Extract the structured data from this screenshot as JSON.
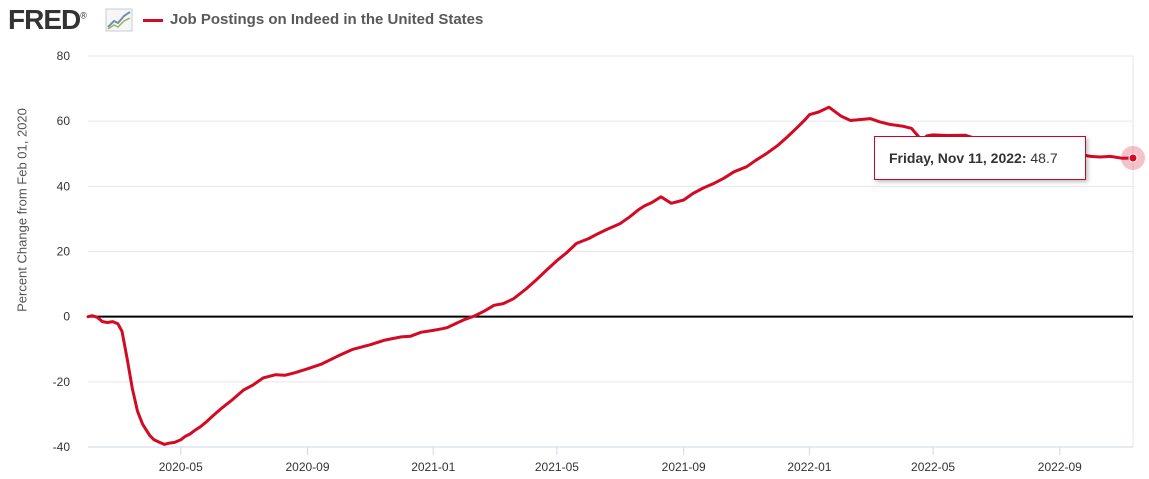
{
  "header": {
    "logo_text": "FRED",
    "logo_registered": "®",
    "logo_icon": "trend-chart-icon"
  },
  "colors": {
    "series": "#d20a23",
    "zero_line": "#000000",
    "grid": "#e6e6e6",
    "tooltip_border": "#c00a2a"
  },
  "tooltip": {
    "date": "Friday, Nov 11, 2022:",
    "value": "48.7"
  },
  "chart_data": {
    "type": "line",
    "title": "",
    "xlabel": "",
    "ylabel": "Percent Change from Feb 01, 2020",
    "ylim": [
      -40,
      80
    ],
    "xlim": [
      "2020-02-01",
      "2022-11-11"
    ],
    "grid": true,
    "legend": "top-left",
    "y_ticks": [
      "80",
      "60",
      "40",
      "20",
      "0",
      "-20",
      "-40"
    ],
    "x_ticks": [
      "2020-05",
      "2020-09",
      "2021-01",
      "2021-05",
      "2021-09",
      "2022-01",
      "2022-05",
      "2022-09"
    ],
    "series": [
      {
        "name": "Job Postings on Indeed in the United States",
        "x": [
          "2020-02-01",
          "2020-02-05",
          "2020-02-10",
          "2020-02-15",
          "2020-02-20",
          "2020-02-25",
          "2020-03-01",
          "2020-03-05",
          "2020-03-10",
          "2020-03-15",
          "2020-03-20",
          "2020-03-25",
          "2020-04-01",
          "2020-04-05",
          "2020-04-10",
          "2020-04-15",
          "2020-04-20",
          "2020-04-25",
          "2020-05-01",
          "2020-05-05",
          "2020-05-10",
          "2020-05-15",
          "2020-05-20",
          "2020-05-25",
          "2020-06-01",
          "2020-06-10",
          "2020-06-20",
          "2020-07-01",
          "2020-07-10",
          "2020-07-20",
          "2020-08-01",
          "2020-08-10",
          "2020-08-20",
          "2020-09-01",
          "2020-09-15",
          "2020-10-01",
          "2020-10-15",
          "2020-11-01",
          "2020-11-15",
          "2020-12-01",
          "2020-12-10",
          "2020-12-20",
          "2021-01-01",
          "2021-01-10",
          "2021-01-15",
          "2021-01-25",
          "2021-02-01",
          "2021-02-10",
          "2021-02-20",
          "2021-03-01",
          "2021-03-10",
          "2021-03-20",
          "2021-04-01",
          "2021-04-10",
          "2021-04-20",
          "2021-05-01",
          "2021-05-10",
          "2021-05-20",
          "2021-06-01",
          "2021-06-10",
          "2021-06-20",
          "2021-07-01",
          "2021-07-10",
          "2021-07-20",
          "2021-07-25",
          "2021-08-01",
          "2021-08-10",
          "2021-08-20",
          "2021-09-01",
          "2021-09-10",
          "2021-09-20",
          "2021-10-01",
          "2021-10-10",
          "2021-10-20",
          "2021-11-01",
          "2021-11-10",
          "2021-11-20",
          "2021-12-01",
          "2021-12-10",
          "2021-12-20",
          "2021-12-28",
          "2022-01-01",
          "2022-01-10",
          "2022-01-20",
          "2022-02-01",
          "2022-02-10",
          "2022-02-20",
          "2022-03-01",
          "2022-03-10",
          "2022-03-20",
          "2022-04-01",
          "2022-04-10",
          "2022-04-15",
          "2022-04-20",
          "2022-04-25",
          "2022-05-01",
          "2022-05-15",
          "2022-06-01",
          "2022-06-10",
          "2022-06-20",
          "2022-07-01",
          "2022-07-10",
          "2022-07-20",
          "2022-08-01",
          "2022-08-10",
          "2022-08-20",
          "2022-09-01",
          "2022-09-10",
          "2022-09-20",
          "2022-10-01",
          "2022-10-10",
          "2022-10-20",
          "2022-11-01",
          "2022-11-11"
        ],
        "values": [
          0.0,
          0.3,
          -0.2,
          -1.5,
          -1.8,
          -1.5,
          -2.2,
          -4.5,
          -13,
          -22,
          -29,
          -33,
          -36.5,
          -37.8,
          -38.5,
          -39.2,
          -38.8,
          -38.6,
          -37.8,
          -36.8,
          -36.0,
          -34.8,
          -33.8,
          -32.5,
          -30.5,
          -28.0,
          -25.5,
          -22.5,
          -21.0,
          -18.8,
          -17.8,
          -18.0,
          -17.2,
          -16.0,
          -14.5,
          -12.0,
          -10.0,
          -8.6,
          -7.2,
          -6.2,
          -6.0,
          -4.8,
          -4.2,
          -3.7,
          -3.3,
          -1.8,
          -0.8,
          0.2,
          1.8,
          3.5,
          4.0,
          5.5,
          8.5,
          11.0,
          14.0,
          17.2,
          19.5,
          22.5,
          24.0,
          25.5,
          27.0,
          28.5,
          30.5,
          33.0,
          34.0,
          35.0,
          36.8,
          34.8,
          35.8,
          37.8,
          39.5,
          41.0,
          42.5,
          44.5,
          46.0,
          48.0,
          50.0,
          52.5,
          55.0,
          58.0,
          60.5,
          62.0,
          62.8,
          64.3,
          61.5,
          60.2,
          60.5,
          60.8,
          59.8,
          59.0,
          58.5,
          57.8,
          56.0,
          54.0,
          55.5,
          55.8,
          55.6,
          55.7,
          54.8,
          54.3,
          53.8,
          53.2,
          52.6,
          52.0,
          51.2,
          51.0,
          50.8,
          50.3,
          49.8,
          49.2,
          49.0,
          49.2,
          48.6,
          48.7
        ]
      }
    ]
  }
}
